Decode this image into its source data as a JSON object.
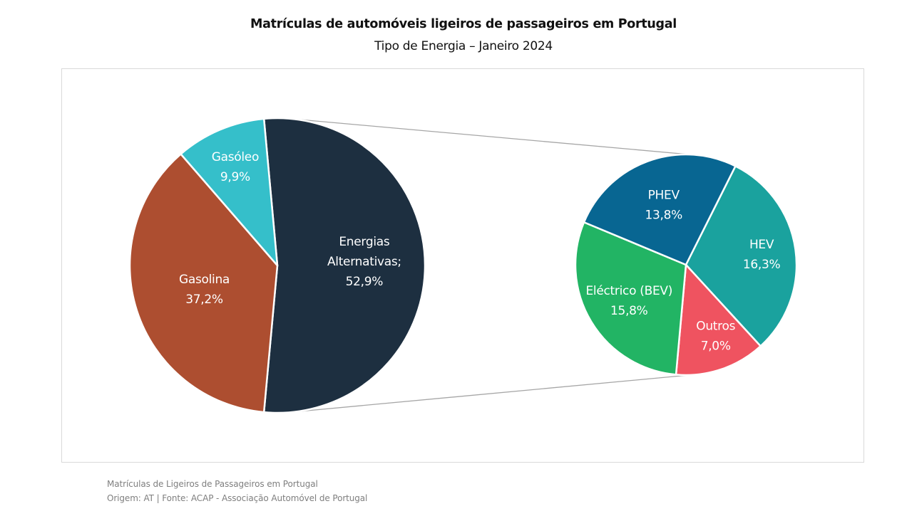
{
  "chart_data": {
    "type": "pie",
    "subtype": "pie-of-pie",
    "title": "Matrículas de automóveis ligeiros de passageiros em Portugal",
    "subtitle": "Tipo de Energia – Janeiro 2024",
    "main_pie": {
      "slices": [
        {
          "name": "Energias Alternativas",
          "label_lines": [
            "Energias",
            "Alternativas;",
            "52,9%"
          ],
          "value": 52.9,
          "color": "#1d2f40"
        },
        {
          "name": "Gasolina",
          "label_lines": [
            "Gasolina",
            "37,2%"
          ],
          "value": 37.2,
          "color": "#ad4e30"
        },
        {
          "name": "Gasóleo",
          "label_lines": [
            "Gasóleo",
            "9,9%"
          ],
          "value": 9.9,
          "color": "#35bfca"
        }
      ]
    },
    "secondary_pie": {
      "breakdown_of": "Energias Alternativas",
      "slices": [
        {
          "name": "HEV",
          "label_lines": [
            "HEV",
            "16,3%"
          ],
          "value": 16.3,
          "color": "#1aa29e"
        },
        {
          "name": "Outros",
          "label_lines": [
            "Outros",
            "7,0%"
          ],
          "value": 7.0,
          "color": "#ef5360"
        },
        {
          "name": "Eléctrico (BEV)",
          "label_lines": [
            "Eléctrico (BEV)",
            "15,8%"
          ],
          "value": 15.8,
          "color": "#22b464"
        },
        {
          "name": "PHEV",
          "label_lines": [
            "PHEV",
            "13,8%"
          ],
          "value": 13.8,
          "color": "#086692"
        }
      ]
    },
    "connector_color": "#a6a6a6",
    "units": "%"
  },
  "footer": {
    "line1": "Matrículas de Ligeiros de Passageiros em Portugal",
    "line2": "Origem: AT | Fonte: ACAP - Associação Automóvel de Portugal"
  }
}
